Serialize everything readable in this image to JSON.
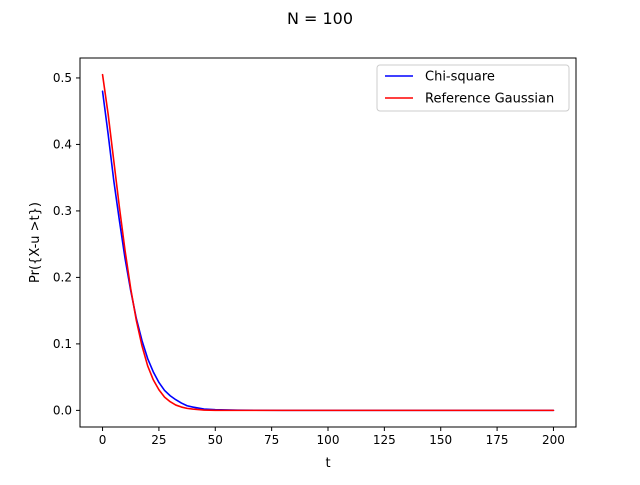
{
  "chart_data": {
    "type": "line",
    "title": "N = 100",
    "xlabel": "t",
    "ylabel": "Pr({X-u >t})",
    "xlim": [
      -10,
      210
    ],
    "ylim": [
      -0.025,
      0.53
    ],
    "xticks": [
      0,
      25,
      50,
      75,
      100,
      125,
      150,
      175,
      200
    ],
    "yticks": [
      0.0,
      0.1,
      0.2,
      0.3,
      0.4,
      0.5
    ],
    "xtick_labels": [
      "0",
      "25",
      "50",
      "75",
      "100",
      "125",
      "150",
      "175",
      "200"
    ],
    "ytick_labels": [
      "0.0",
      "0.1",
      "0.2",
      "0.3",
      "0.4",
      "0.5"
    ],
    "grid": false,
    "legend_position": "top-right",
    "series": [
      {
        "name": "Chi-square",
        "color": "#0000ff",
        "x": [
          0,
          2.5,
          5,
          7.5,
          10,
          12.5,
          15,
          17.5,
          20,
          22.5,
          25,
          27.5,
          30,
          32.5,
          35,
          37.5,
          40,
          45,
          50,
          60,
          80,
          100,
          150,
          200
        ],
        "y": [
          0.48,
          0.415,
          0.345,
          0.285,
          0.228,
          0.18,
          0.138,
          0.105,
          0.078,
          0.058,
          0.042,
          0.03,
          0.022,
          0.016,
          0.011,
          0.007,
          0.005,
          0.002,
          0.001,
          0.0003,
          0.0,
          0.0,
          0.0,
          0.0
        ]
      },
      {
        "name": "Reference Gaussian",
        "color": "#ff0000",
        "x": [
          0,
          2.5,
          5,
          7.5,
          10,
          12.5,
          15,
          17.5,
          20,
          22.5,
          25,
          27.5,
          30,
          32.5,
          35,
          37.5,
          40,
          45,
          50,
          60,
          80,
          100,
          150,
          200
        ],
        "y": [
          0.505,
          0.445,
          0.375,
          0.305,
          0.24,
          0.183,
          0.135,
          0.097,
          0.067,
          0.046,
          0.031,
          0.02,
          0.013,
          0.008,
          0.005,
          0.003,
          0.002,
          0.0005,
          0.0001,
          0.0,
          0.0,
          0.0,
          0.0,
          0.0
        ]
      }
    ]
  }
}
